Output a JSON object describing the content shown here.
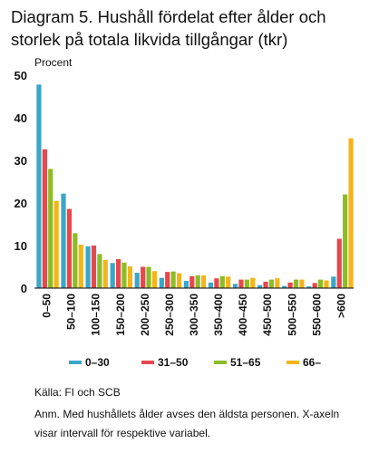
{
  "chart_data": {
    "type": "bar",
    "title_line1": "Diagram 5. Hushåll fördelat efter ålder och",
    "title_line2": "storlek på totala likvida tillgångar (tkr)",
    "ylabel": "Procent",
    "ylim": [
      0,
      50
    ],
    "yticks": [
      "0",
      "10",
      "20",
      "30",
      "40",
      "50"
    ],
    "grid": false,
    "legend_position": "bottom",
    "categories": [
      "0–50",
      "50–100",
      "100–150",
      "150–200",
      "200–250",
      "250–300",
      "300–350",
      "350–400",
      "400–450",
      "450–500",
      "500–550",
      "550–600",
      ">600"
    ],
    "series": [
      {
        "name": "0–30",
        "color": "#3aa6c8",
        "values": [
          47.8,
          22.2,
          9.8,
          5.9,
          3.6,
          2.4,
          1.7,
          1.3,
          1.0,
          0.7,
          0.5,
          0.4,
          2.7
        ]
      },
      {
        "name": "31–50",
        "color": "#e8474c",
        "values": [
          32.6,
          18.6,
          10.0,
          6.8,
          5.0,
          3.8,
          2.8,
          2.3,
          2.0,
          1.5,
          1.3,
          1.2,
          11.6
        ]
      },
      {
        "name": "51–65",
        "color": "#8cbc27",
        "values": [
          28.0,
          12.9,
          8.0,
          6.0,
          5.0,
          3.9,
          3.0,
          2.8,
          2.0,
          2.0,
          2.0,
          2.0,
          22.0
        ]
      },
      {
        "name": "66–",
        "color": "#f4b41a",
        "values": [
          20.5,
          10.2,
          6.6,
          5.1,
          4.0,
          3.5,
          3.0,
          2.7,
          2.4,
          2.3,
          2.0,
          1.8,
          35.2
        ]
      }
    ]
  },
  "footer": {
    "source": "Källa: FI och SCB",
    "note": "Anm. Med hushållets ålder avses den äldsta personen. X-axeln visar intervall för respektive variabel."
  }
}
